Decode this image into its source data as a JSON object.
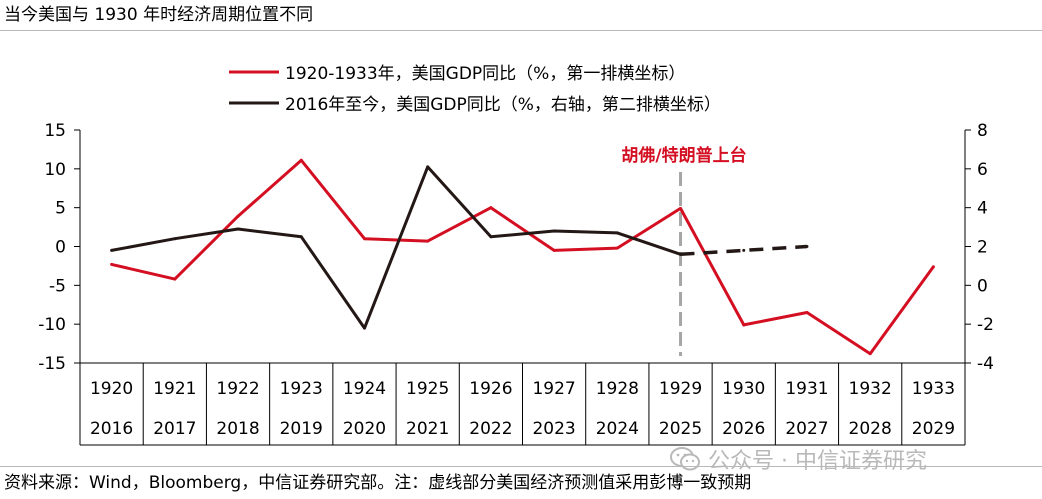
{
  "title": "当今美国与 1930 年时经济周期位置不同",
  "source_note": "资料来源：Wind，Bloomberg，中信证券研究部。注：虚线部分美国经济预测值采用彭博一致预期",
  "watermark": "公众号 · 中信证券研究",
  "colors": {
    "series1": "#d40f22",
    "series2": "#231815",
    "marker": "#a6a6a6",
    "grid": "#000000"
  },
  "chart_data": {
    "type": "line",
    "categories_row1": [
      "1920",
      "1921",
      "1922",
      "1923",
      "1924",
      "1925",
      "1926",
      "1927",
      "1928",
      "1929",
      "1930",
      "1931",
      "1932",
      "1933"
    ],
    "categories_row2": [
      "2016",
      "2017",
      "2018",
      "2019",
      "2020",
      "2021",
      "2022",
      "2023",
      "2024",
      "2025",
      "2026",
      "2027",
      "2028",
      "2029"
    ],
    "left_axis": {
      "ylim": [
        -15,
        15
      ],
      "ticks": [
        15,
        10,
        5,
        0,
        -5,
        -10,
        -15
      ]
    },
    "right_axis": {
      "ylim": [
        -4,
        8
      ],
      "ticks": [
        8,
        6,
        4,
        2,
        0,
        -2,
        -4
      ]
    },
    "series": [
      {
        "name": "1920-1933年，美国GDP同比（%，第一排横坐标）",
        "axis": "left",
        "values": [
          -2.3,
          -4.2,
          3.9,
          11.1,
          1.0,
          0.7,
          5.0,
          -0.5,
          -0.2,
          4.9,
          -10.1,
          -8.5,
          -13.8,
          -2.6
        ]
      },
      {
        "name": "2016年至今，美国GDP同比（%，右轴，第二排横坐标）",
        "axis": "right",
        "values": [
          1.8,
          2.4,
          2.9,
          2.5,
          -2.2,
          6.1,
          2.5,
          2.8,
          2.7,
          1.6,
          null,
          null,
          null,
          null
        ],
        "forecast_values": [
          null,
          null,
          null,
          null,
          null,
          null,
          null,
          null,
          null,
          1.6,
          1.8,
          2.0,
          null,
          null
        ]
      }
    ],
    "annotation": {
      "text": "胡佛/特朗普上台",
      "category_index": 9
    },
    "legend": "top-center"
  }
}
